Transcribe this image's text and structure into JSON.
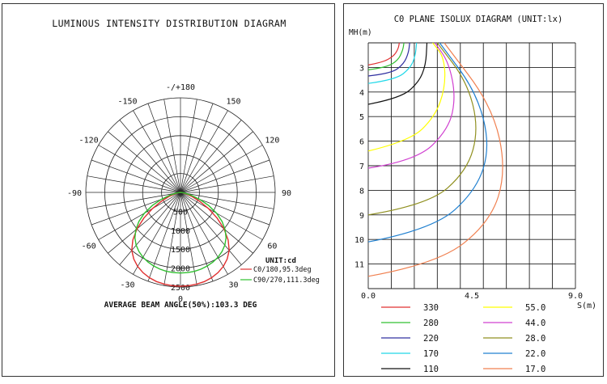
{
  "chart_data": [
    {
      "type": "polar",
      "title": "LUMINOUS INTENSITY DISTRIBUTION DIAGRAM",
      "angle_labels": [
        {
          "angle": 180,
          "text": "-/+180"
        },
        {
          "angle": 150,
          "text": "150"
        },
        {
          "angle": -150,
          "text": "-150"
        },
        {
          "angle": 120,
          "text": "120"
        },
        {
          "angle": -120,
          "text": "-120"
        },
        {
          "angle": 90,
          "text": "90"
        },
        {
          "angle": -90,
          "text": "-90"
        },
        {
          "angle": 60,
          "text": "60"
        },
        {
          "angle": -60,
          "text": "-60"
        },
        {
          "angle": 30,
          "text": "30"
        },
        {
          "angle": -30,
          "text": "-30"
        },
        {
          "angle": 0,
          "text": "0"
        }
      ],
      "radial_labels": [
        {
          "value": 500,
          "text": "500"
        },
        {
          "value": 1000,
          "text": "1000"
        },
        {
          "value": 1500,
          "text": "1500"
        },
        {
          "value": 2000,
          "text": "2000"
        },
        {
          "value": 2500,
          "text": "2500"
        }
      ],
      "r_max": 2500,
      "unit_label": "UNIT:cd",
      "footer": "AVERAGE BEAM ANGLE(50%):103.3 DEG",
      "series": [
        {
          "name": "C0/180,95.3deg",
          "color": "#e03030",
          "points": [
            [
              0,
              2480
            ],
            [
              5,
              2475
            ],
            [
              10,
              2460
            ],
            [
              15,
              2440
            ],
            [
              20,
              2400
            ],
            [
              25,
              2340
            ],
            [
              30,
              2260
            ],
            [
              35,
              2150
            ],
            [
              40,
              2000
            ],
            [
              45,
              1780
            ],
            [
              50,
              1500
            ],
            [
              55,
              1180
            ],
            [
              60,
              850
            ],
            [
              65,
              560
            ],
            [
              70,
              330
            ],
            [
              75,
              170
            ],
            [
              80,
              80
            ],
            [
              85,
              30
            ],
            [
              90,
              0
            ]
          ]
        },
        {
          "name": "C90/270,111.3deg",
          "color": "#30c030",
          "points": [
            [
              0,
              2130
            ],
            [
              5,
              2128
            ],
            [
              10,
              2120
            ],
            [
              15,
              2100
            ],
            [
              20,
              2070
            ],
            [
              25,
              2030
            ],
            [
              30,
              1980
            ],
            [
              35,
              1910
            ],
            [
              40,
              1820
            ],
            [
              45,
              1700
            ],
            [
              50,
              1540
            ],
            [
              55,
              1340
            ],
            [
              60,
              1100
            ],
            [
              65,
              820
            ],
            [
              70,
              540
            ],
            [
              75,
              300
            ],
            [
              80,
              130
            ],
            [
              85,
              40
            ],
            [
              90,
              0
            ]
          ]
        }
      ]
    },
    {
      "type": "contour",
      "title": "C0 PLANE ISOLUX DIAGRAM (UNIT:lx)",
      "ylabel": "MH(m)",
      "xlabel": "S(m)",
      "xlim": [
        0,
        9.0
      ],
      "ylim": [
        2,
        12
      ],
      "x_tick_labels": [
        {
          "value": 0,
          "text": "0.0"
        },
        {
          "value": 4.5,
          "text": "4.5"
        },
        {
          "value": 9.0,
          "text": "9.0"
        }
      ],
      "y_tick_labels": [
        "3",
        "4",
        "5",
        "6",
        "7",
        "8",
        "9",
        "10",
        "11"
      ],
      "series": [
        {
          "name": "330",
          "color": "#e03030",
          "points": [
            [
              0,
              2.9
            ],
            [
              0.6,
              2.8
            ],
            [
              1.1,
              2.55
            ],
            [
              1.3,
              2.25
            ],
            [
              1.35,
              2.0
            ]
          ]
        },
        {
          "name": "280",
          "color": "#30c030",
          "points": [
            [
              0,
              3.1
            ],
            [
              0.8,
              3.0
            ],
            [
              1.3,
              2.7
            ],
            [
              1.5,
              2.3
            ],
            [
              1.55,
              2.0
            ]
          ]
        },
        {
          "name": "220",
          "color": "#3030a0",
          "points": [
            [
              0,
              3.35
            ],
            [
              1.0,
              3.25
            ],
            [
              1.55,
              2.85
            ],
            [
              1.75,
              2.4
            ],
            [
              1.8,
              2.0
            ]
          ]
        },
        {
          "name": "170",
          "color": "#20d8e8",
          "points": [
            [
              0,
              3.65
            ],
            [
              1.2,
              3.5
            ],
            [
              1.85,
              3.0
            ],
            [
              2.05,
              2.5
            ],
            [
              2.1,
              2.0
            ]
          ]
        },
        {
          "name": "110",
          "color": "#111111",
          "points": [
            [
              0,
              4.5
            ],
            [
              1.4,
              4.25
            ],
            [
              2.2,
              3.6
            ],
            [
              2.5,
              2.9
            ],
            [
              2.55,
              2.0
            ]
          ]
        },
        {
          "name": "55.0",
          "color": "#ffff00",
          "points": [
            [
              0,
              6.4
            ],
            [
              1.8,
              6.0
            ],
            [
              2.9,
              5.0
            ],
            [
              3.35,
              3.8
            ],
            [
              3.3,
              2.6
            ],
            [
              2.8,
              2.0
            ]
          ]
        },
        {
          "name": "44.0",
          "color": "#d040d0",
          "points": [
            [
              0,
              7.1
            ],
            [
              2.1,
              6.8
            ],
            [
              3.5,
              5.5
            ],
            [
              3.8,
              4.2
            ],
            [
              3.5,
              2.8
            ],
            [
              2.9,
              2.0
            ]
          ]
        },
        {
          "name": "28.0",
          "color": "#909020",
          "points": [
            [
              0,
              9.0
            ],
            [
              2.6,
              8.6
            ],
            [
              4.3,
              7.2
            ],
            [
              4.8,
              5.5
            ],
            [
              4.3,
              3.6
            ],
            [
              3.0,
              2.0
            ]
          ]
        },
        {
          "name": "22.0",
          "color": "#2080d0",
          "points": [
            [
              0,
              10.1
            ],
            [
              2.8,
              9.6
            ],
            [
              4.7,
              8.0
            ],
            [
              5.3,
              6.2
            ],
            [
              4.7,
              4.0
            ],
            [
              3.1,
              2.0
            ]
          ]
        },
        {
          "name": "17.0",
          "color": "#f08050",
          "points": [
            [
              0,
              11.5
            ],
            [
              3.0,
              11.0
            ],
            [
              5.3,
              9.3
            ],
            [
              6.0,
              7.2
            ],
            [
              5.4,
              4.6
            ],
            [
              3.3,
              2.0
            ]
          ]
        }
      ]
    }
  ]
}
